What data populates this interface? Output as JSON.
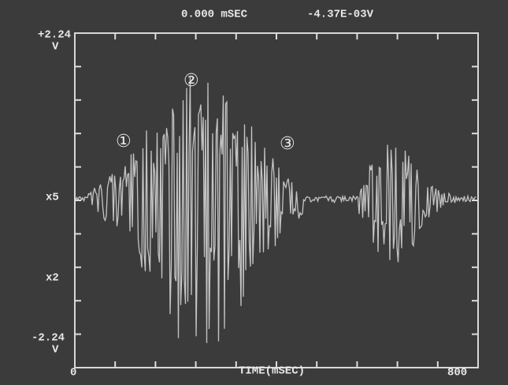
{
  "header": {
    "time": "0.000 mSEC",
    "voltage": "-4.37E-03V"
  },
  "axis": {
    "top_value": "+2.24",
    "top_unit": "V",
    "zero_label": "x5",
    "gain_label": "x2",
    "bottom_value": "-2.24",
    "bottom_unit": "V",
    "x_start": "0",
    "x_label": "TIME(mSEC)",
    "x_end": "800"
  },
  "markers": [
    "①",
    "②",
    "③"
  ]
}
